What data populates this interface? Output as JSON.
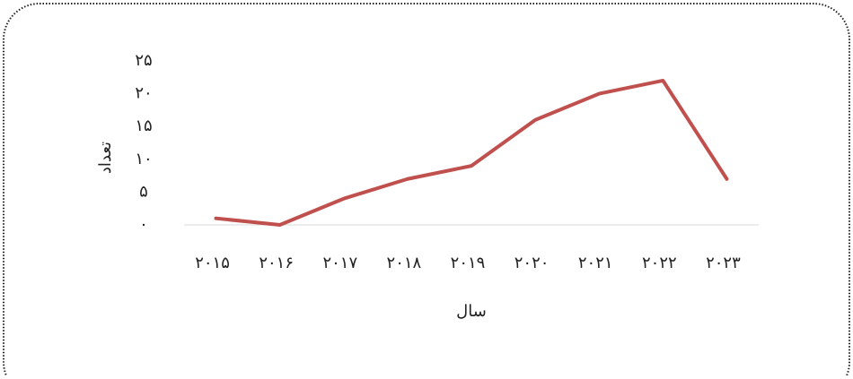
{
  "chart_data": {
    "type": "line",
    "x_label": "سال",
    "y_label": "تعداد",
    "categories": [
      "۲۰۱۵",
      "۲۰۱۶",
      "۲۰۱۷",
      "۲۰۱۸",
      "۲۰۱۹",
      "۲۰۲۰",
      "۲۰۲۱",
      "۲۰۲۲",
      "۲۰۲۳"
    ],
    "series": [
      {
        "name": "تعداد",
        "color": "#c0504d",
        "values": [
          1,
          0,
          4,
          7,
          9,
          16,
          20,
          22,
          7
        ]
      }
    ],
    "ylim": [
      0,
      25
    ],
    "yticks": [
      {
        "value": 0,
        "label": "۰"
      },
      {
        "value": 5,
        "label": "۵"
      },
      {
        "value": 10,
        "label": "۱۰"
      },
      {
        "value": 15,
        "label": "۱۵"
      },
      {
        "value": 20,
        "label": "۲۰"
      },
      {
        "value": 25,
        "label": "۲۵"
      }
    ],
    "grid": false
  }
}
